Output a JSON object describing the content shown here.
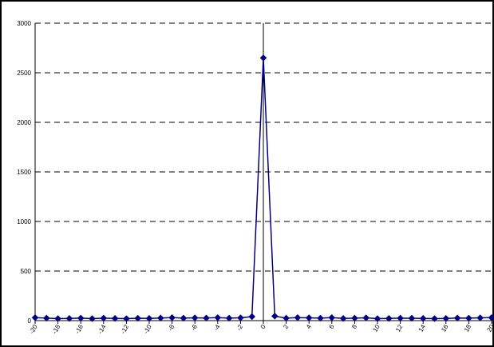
{
  "chart_data": {
    "type": "line",
    "title": "",
    "xlabel": "",
    "ylabel": "",
    "xlim": [
      -20,
      20
    ],
    "ylim": [
      0,
      3000
    ],
    "y_ticks": [
      0,
      500,
      1000,
      1500,
      2000,
      2500,
      3000
    ],
    "x_tick_labels": [
      "-20",
      "-18",
      "-16",
      "-14",
      "-12",
      "-10",
      "-8",
      "-6",
      "-4",
      "-2",
      "0",
      "2",
      "4",
      "6",
      "8",
      "10",
      "12",
      "14",
      "16",
      "18",
      "20"
    ],
    "grid": "horizontal dashed",
    "legend": "none",
    "series": [
      {
        "color": "#000080",
        "marker": "diamond",
        "x": [
          -20,
          -19,
          -18,
          -17,
          -16,
          -15,
          -14,
          -13,
          -12,
          -11,
          -10,
          -9,
          -8,
          -7,
          -6,
          -5,
          -4,
          -3,
          -2,
          -1,
          0,
          1,
          2,
          3,
          4,
          5,
          6,
          7,
          8,
          9,
          10,
          11,
          12,
          13,
          14,
          15,
          16,
          17,
          18,
          19,
          20
        ],
        "values": [
          30,
          25,
          20,
          22,
          25,
          20,
          25,
          22,
          20,
          24,
          22,
          26,
          30,
          25,
          28,
          26,
          30,
          25,
          28,
          40,
          2650,
          45,
          25,
          30,
          28,
          25,
          30,
          22,
          25,
          28,
          20,
          22,
          25,
          24,
          22,
          20,
          22,
          26,
          25,
          28,
          30
        ]
      }
    ]
  }
}
